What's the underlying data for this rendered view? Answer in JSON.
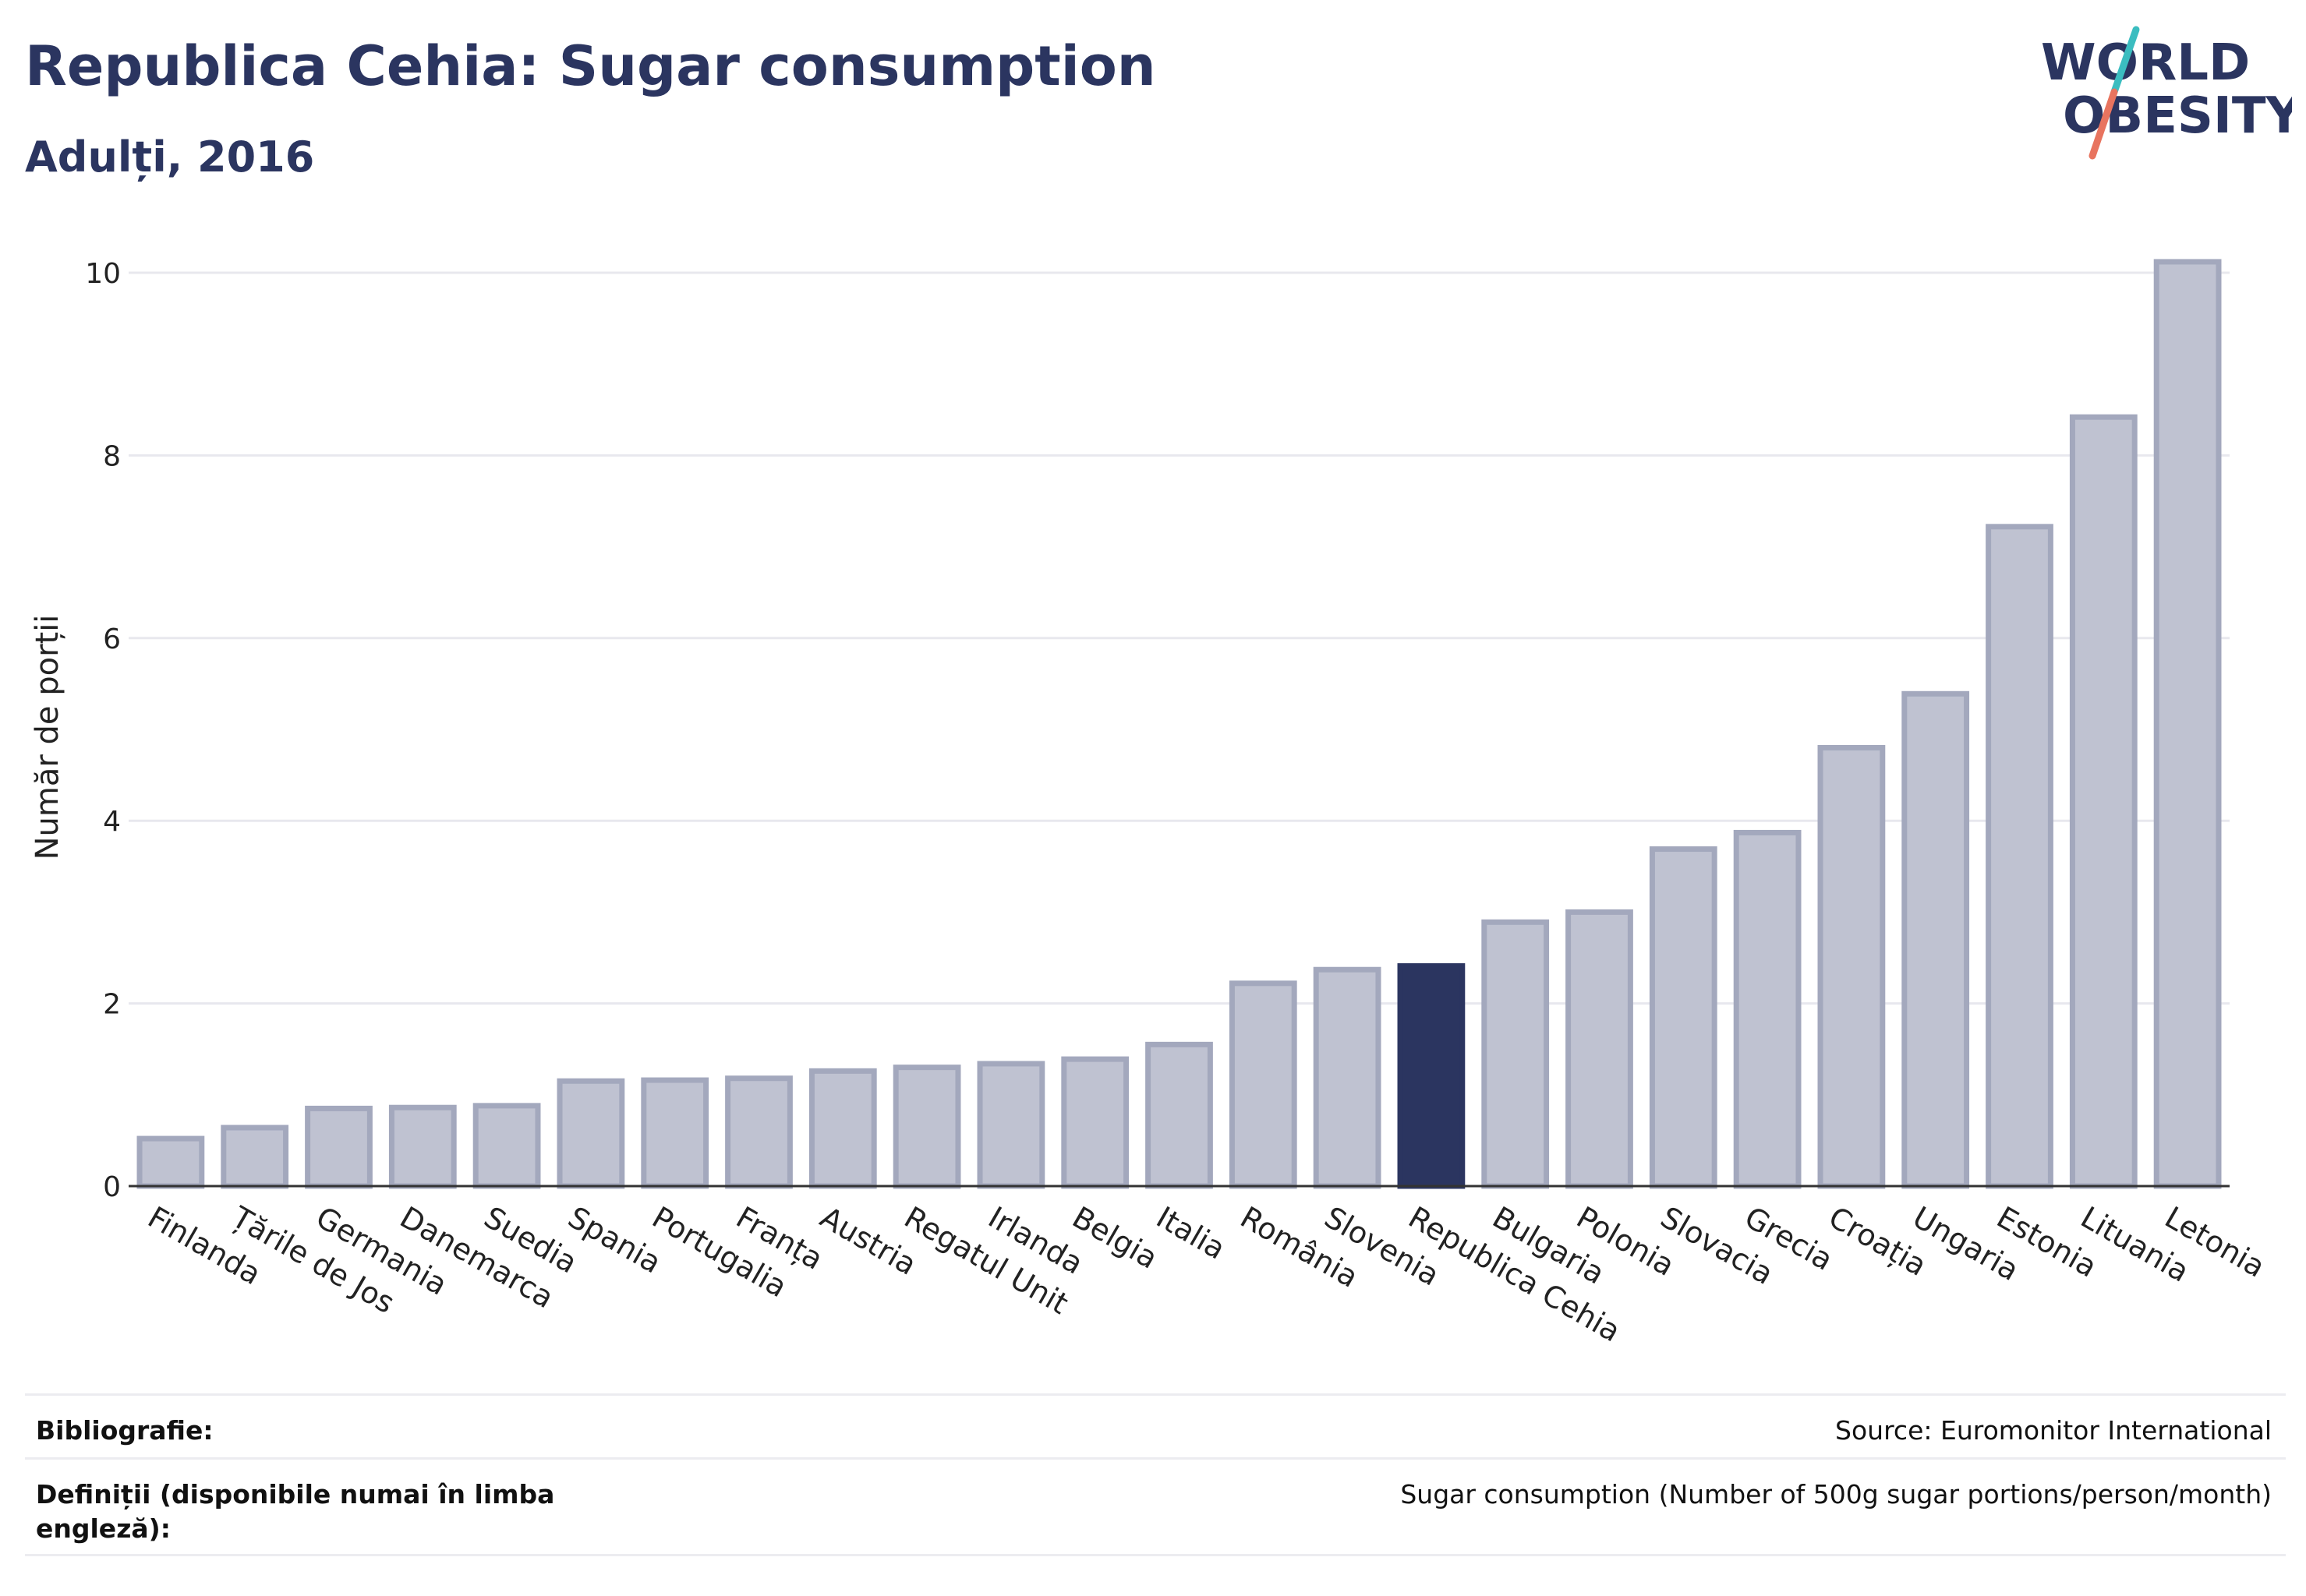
{
  "header": {
    "title": "Republica Cehia: Sugar consumption",
    "subtitle": "Adulți, 2016"
  },
  "logo": {
    "line1": "WORLD",
    "line2": "OBESITY",
    "colors": {
      "text": "#2b3560",
      "slash_teal": "#3bbdc0",
      "slash_coral": "#e8745f"
    }
  },
  "colors": {
    "bar_default": "#bfc2d1",
    "bar_border": "#a3a8bd",
    "bar_highlight": "#2b3560",
    "grid": "#e8e8ee",
    "axis": "#333333",
    "text": "#2b3560"
  },
  "chart_data": {
    "type": "bar",
    "title": "Republica Cehia: Sugar consumption",
    "subtitle": "Adulți, 2016",
    "ylabel": "Număr de porții",
    "xlabel": "",
    "ylim": [
      0,
      10.2
    ],
    "yticks": [
      0,
      2,
      4,
      6,
      8,
      10
    ],
    "grid": true,
    "highlight": "Republica Cehia",
    "categories": [
      "Finlanda",
      "Țările de Jos",
      "Germania",
      "Danemarca",
      "Suedia",
      "Spania",
      "Portugalia",
      "Franța",
      "Austria",
      "Regatul Unit",
      "Irlanda",
      "Belgia",
      "Italia",
      "România",
      "Slovenia",
      "Republica Cehia",
      "Bulgaria",
      "Polonia",
      "Slovacia",
      "Grecia",
      "Croația",
      "Ungaria",
      "Estonia",
      "Lituania",
      "Letonia"
    ],
    "values": [
      0.52,
      0.64,
      0.85,
      0.86,
      0.88,
      1.15,
      1.16,
      1.18,
      1.26,
      1.3,
      1.34,
      1.39,
      1.55,
      2.22,
      2.37,
      2.41,
      2.89,
      3.0,
      3.69,
      3.87,
      4.8,
      5.39,
      7.22,
      8.42,
      10.12
    ]
  },
  "footer": {
    "bibliography_label": "Bibliografie:",
    "bibliography_value": "Source: Euromonitor International",
    "definitions_label": "Definiții (disponibile numai în limba engleză):",
    "definitions_value": "Sugar consumption (Number of 500g sugar portions/person/month)"
  }
}
